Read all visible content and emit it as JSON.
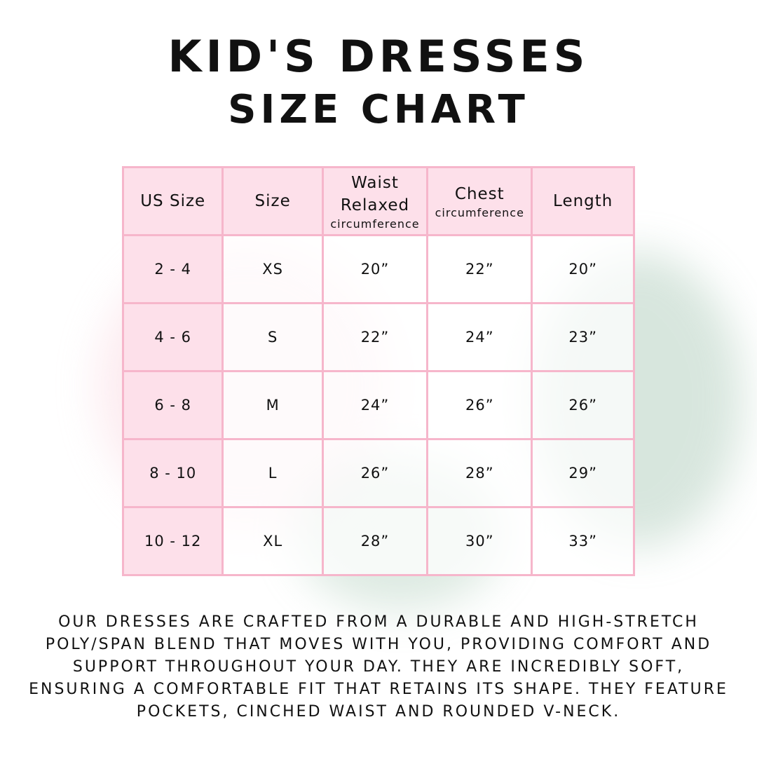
{
  "title_line1": "Kid's Dresses",
  "title_line2": "Size Chart",
  "table": {
    "headers": [
      {
        "main": "US Size",
        "sub": ""
      },
      {
        "main": "Size",
        "sub": ""
      },
      {
        "main": "Waist Relaxed",
        "sub": "circumference"
      },
      {
        "main": "Chest",
        "sub": "circumference"
      },
      {
        "main": "Length",
        "sub": ""
      }
    ],
    "rows": [
      [
        "2 - 4",
        "XS",
        "20”",
        "22”",
        "20”"
      ],
      [
        "4 - 6",
        "S",
        "22”",
        "24”",
        "23”"
      ],
      [
        "6 - 8",
        "M",
        "24”",
        "26”",
        "26”"
      ],
      [
        "8 - 10",
        "L",
        "26”",
        "28”",
        "29”"
      ],
      [
        "10 - 12",
        "XL",
        "28”",
        "30”",
        "33”"
      ]
    ]
  },
  "description": "Our dresses are crafted from a durable and high-stretch poly/span blend that moves with you, providing comfort and support throughout your day. They are incredibly soft, ensuring a comfortable fit that retains its shape. They feature pockets, cinched waist and rounded V-neck.",
  "colors": {
    "pink_fill": "#fde0ea",
    "pink_border": "#f6b6cb"
  }
}
